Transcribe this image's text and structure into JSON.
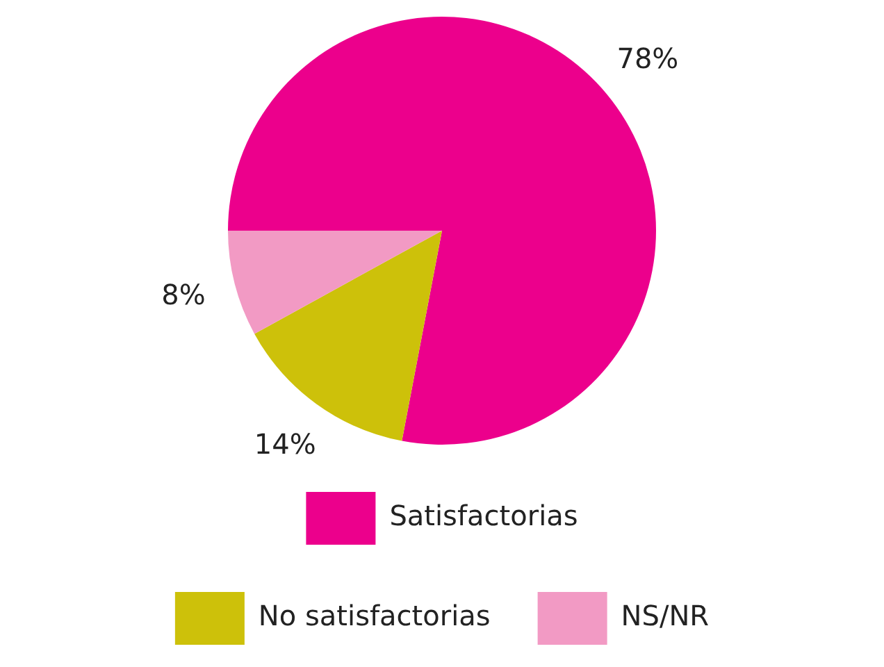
{
  "chart_data": {
    "type": "pie",
    "categories": [
      "Satisfactorias",
      "No satisfactorias",
      "NS/NR"
    ],
    "values": [
      78,
      14,
      8
    ],
    "colors": [
      "#ec008c",
      "#cdc10a",
      "#f29ac4"
    ],
    "value_labels": [
      "78%",
      "14%",
      "8%"
    ],
    "legend": "bottom"
  }
}
